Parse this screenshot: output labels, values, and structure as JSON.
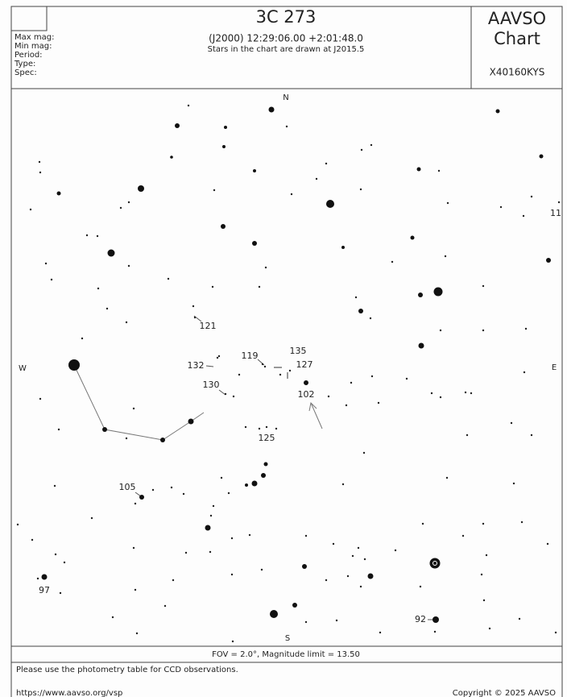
{
  "header": {
    "title": "3C 273",
    "coordinates": "(J2000) 12:29:06.00 +2:01:48.0",
    "epoch_note": "Stars in the chart are drawn at J2015.5",
    "fields": [
      "Max mag:",
      "Min mag:",
      "Period:",
      "Type:",
      "Spec:"
    ],
    "brand": "AAVSO",
    "brand_sub": "Chart",
    "chart_id": "X40160KYS"
  },
  "chart": {
    "compass": {
      "north": "N",
      "south": "S",
      "west": "W",
      "east": "E"
    },
    "labels": [
      "121",
      "132",
      "119",
      "135",
      "127",
      "130",
      "102",
      "125",
      "105",
      "97",
      "92",
      "11"
    ]
  },
  "footer": {
    "fov": "FOV = 2.0°, Magnitude limit = 13.50",
    "note": "Please use the photometry table for CCD observations.",
    "url": "https://www.aavso.org/vsp",
    "copyright": "Copyright © 2025 AAVSO"
  }
}
